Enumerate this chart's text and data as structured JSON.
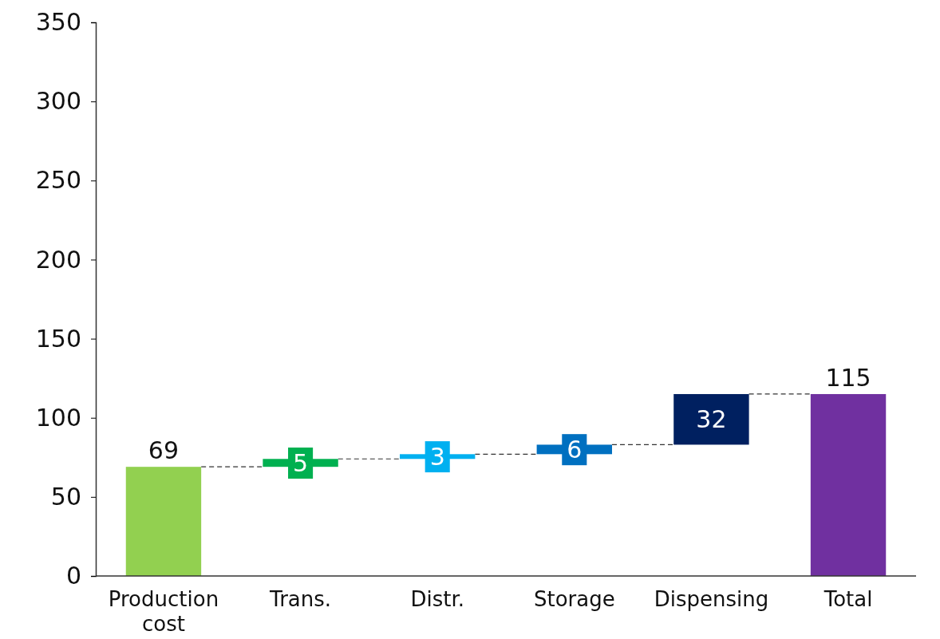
{
  "chart_data": {
    "type": "bar",
    "categories": [
      "Production cost",
      "Trans.",
      "Distr.",
      "Storage",
      "Dispensing",
      "Total"
    ],
    "values": [
      69,
      5,
      3,
      6,
      32,
      115
    ],
    "base": [
      0,
      69,
      74,
      77,
      83,
      0
    ],
    "colors": [
      "#92d050",
      "#00b050",
      "#00b0f0",
      "#0070c0",
      "#002060",
      "#7030a0"
    ],
    "ylim": [
      0,
      350
    ],
    "yticks": [
      0,
      50,
      100,
      150,
      200,
      250,
      300,
      350
    ],
    "grid": false,
    "data_labels": true
  }
}
